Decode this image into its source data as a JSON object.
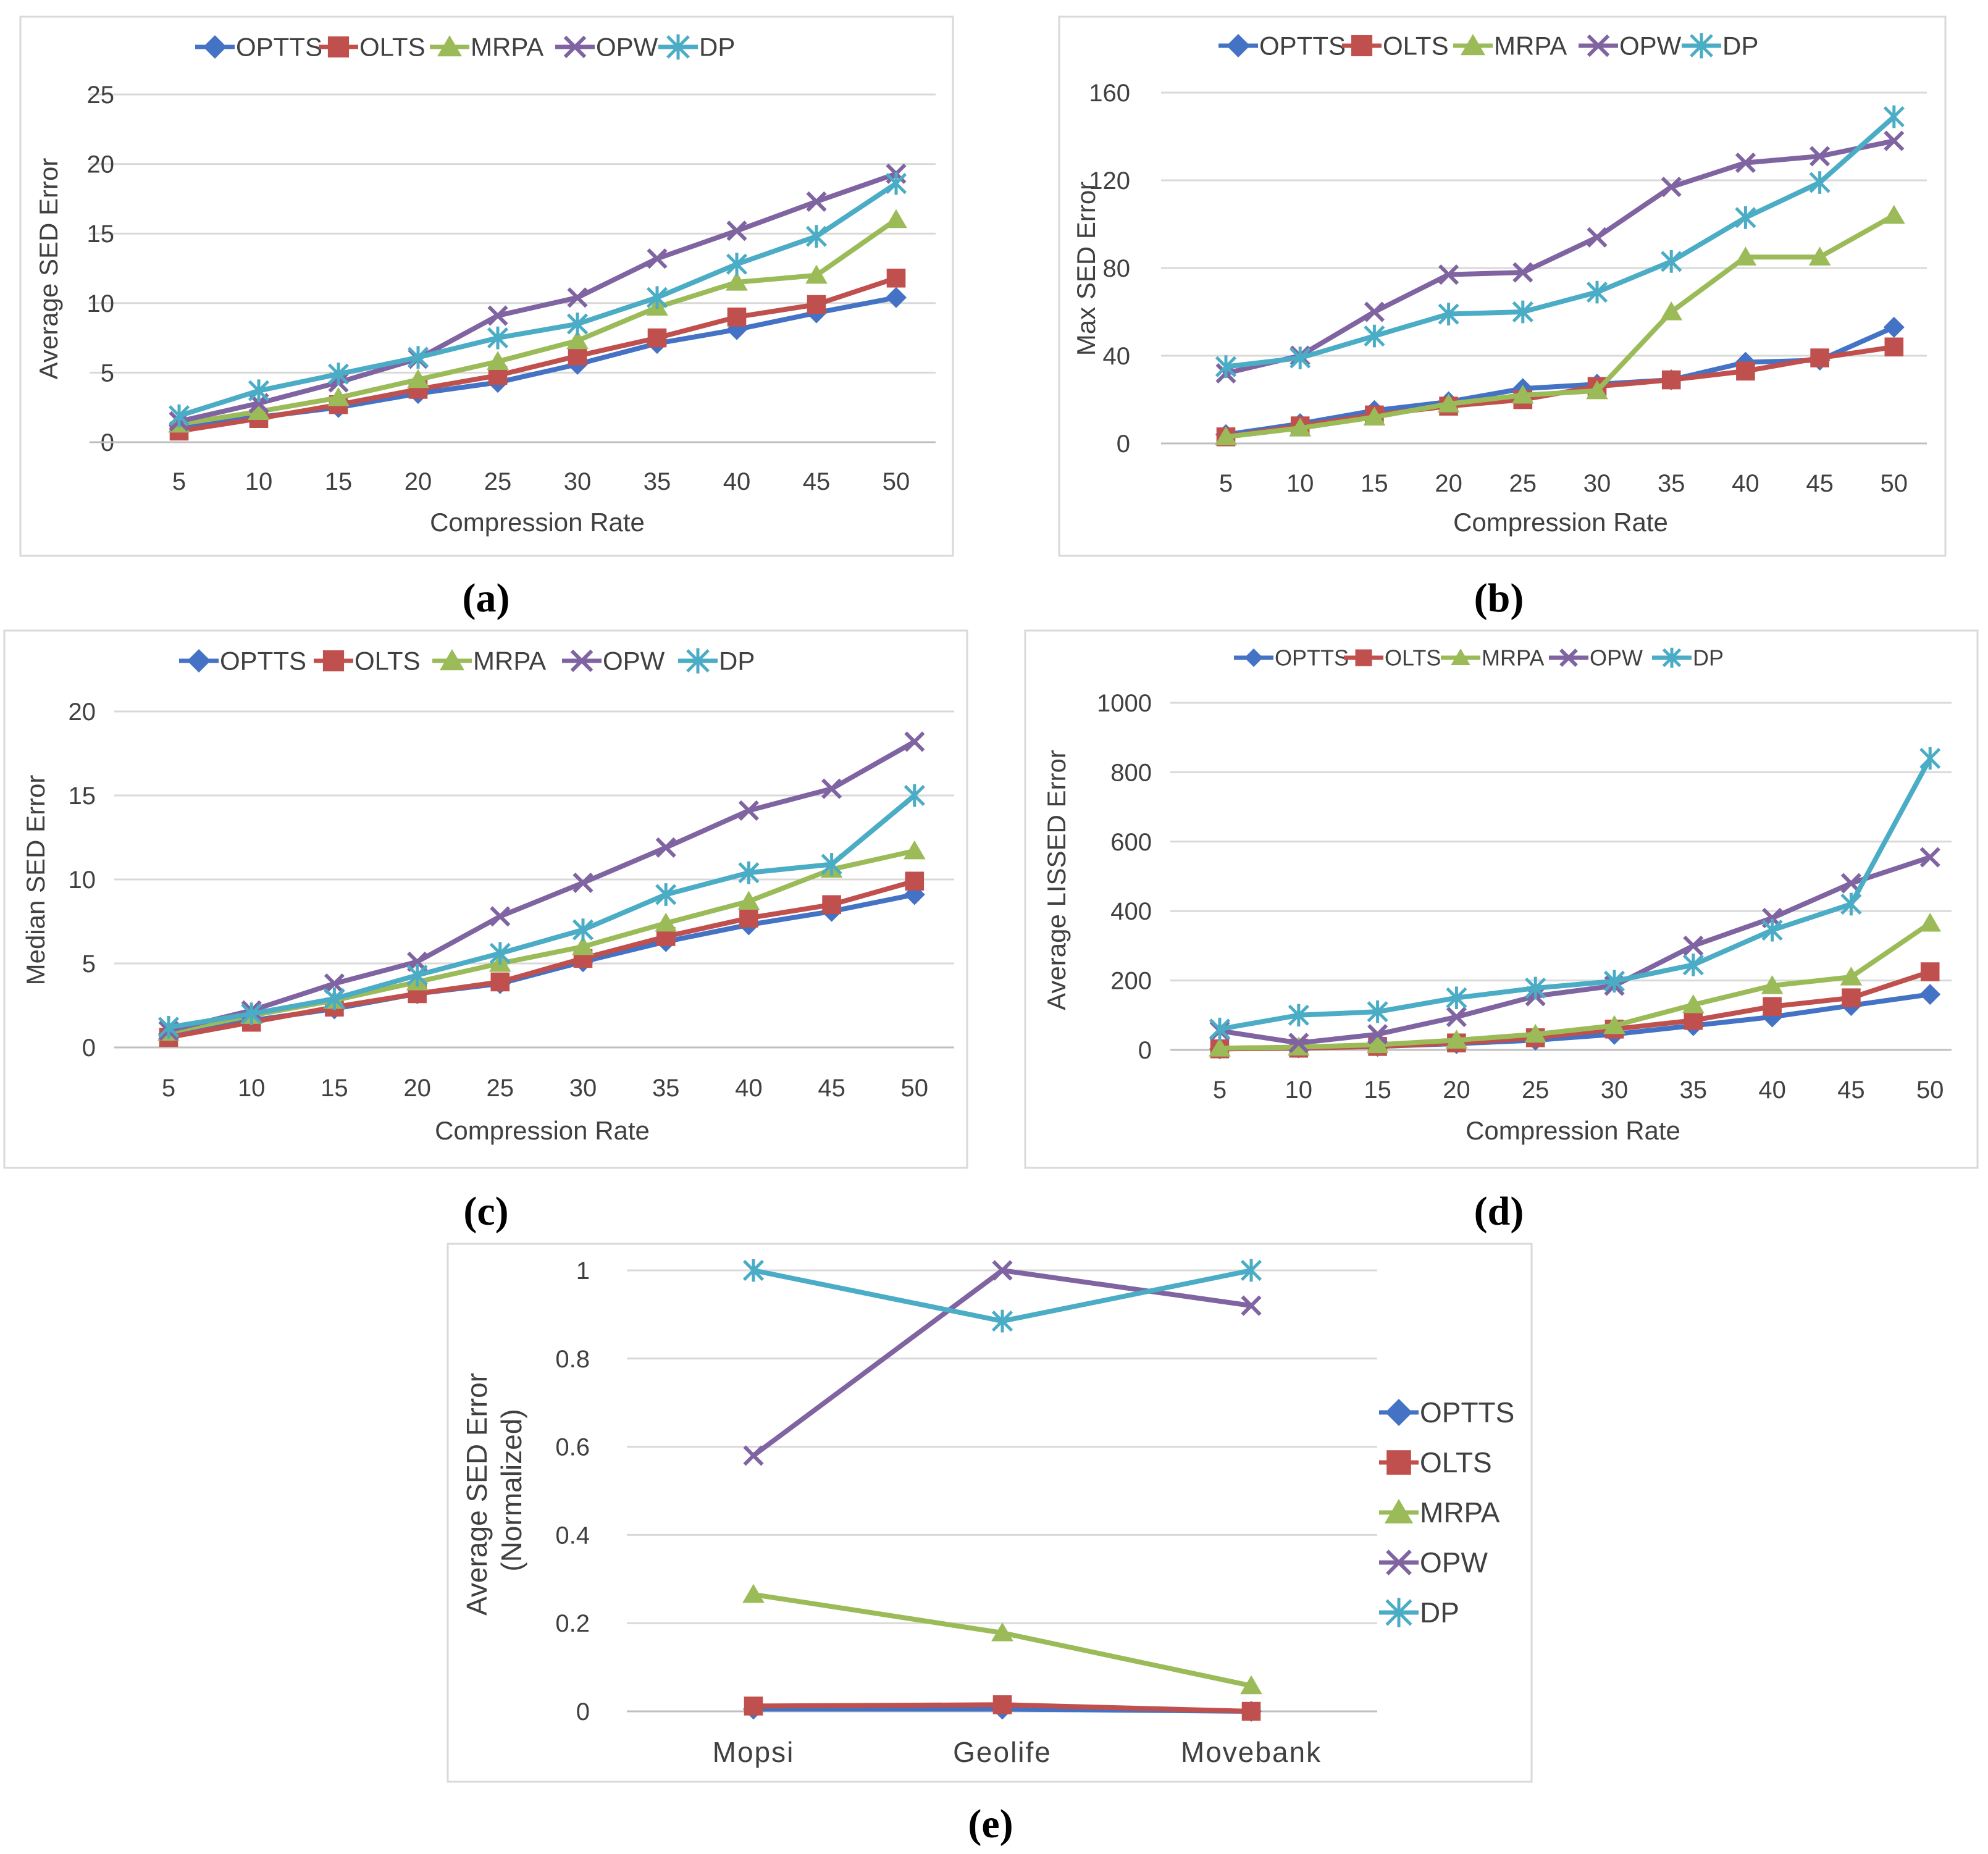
{
  "colors": {
    "OPTTS": "#4472c4",
    "OLTS": "#c0504d",
    "MRPA": "#9bbb59",
    "OPW": "#8064a2",
    "DP": "#4bacc6"
  },
  "markers": {
    "OPTTS": "diamond",
    "OLTS": "square",
    "MRPA": "triangle",
    "OPW": "x",
    "DP": "star"
  },
  "chart_data": [
    {
      "panel": "(a)",
      "type": "line",
      "xlabel": "Compression Rate",
      "ylabel": "Average SED Error",
      "categories": [
        "5",
        "10",
        "15",
        "20",
        "25",
        "30",
        "35",
        "40",
        "45",
        "50"
      ],
      "yticks": [
        "0",
        "5",
        "10",
        "15",
        "20",
        "25"
      ],
      "ylim": [
        0,
        25
      ],
      "legend": [
        "OPTTS",
        "OLTS",
        "MRPA",
        "OPW",
        "DP"
      ],
      "series": [
        {
          "name": "OPTTS",
          "values": [
            1.2,
            1.8,
            2.5,
            3.5,
            4.3,
            5.6,
            7.1,
            8.1,
            9.3,
            10.4
          ]
        },
        {
          "name": "OLTS",
          "values": [
            0.8,
            1.7,
            2.7,
            3.8,
            4.8,
            6.2,
            7.5,
            9.0,
            9.9,
            11.8
          ]
        },
        {
          "name": "MRPA",
          "values": [
            1.3,
            2.2,
            3.2,
            4.5,
            5.8,
            7.3,
            9.7,
            11.5,
            12.0,
            16.0
          ]
        },
        {
          "name": "OPW",
          "values": [
            1.5,
            2.8,
            4.3,
            6.0,
            9.1,
            10.4,
            13.2,
            15.2,
            17.3,
            19.3
          ]
        },
        {
          "name": "DP",
          "values": [
            1.9,
            3.7,
            4.9,
            6.1,
            7.5,
            8.5,
            10.4,
            12.8,
            14.8,
            18.6
          ]
        }
      ]
    },
    {
      "panel": "(b)",
      "type": "line",
      "xlabel": "Compression Rate",
      "ylabel": "Max SED Error",
      "categories": [
        "5",
        "10",
        "15",
        "20",
        "25",
        "30",
        "35",
        "40",
        "45",
        "50"
      ],
      "yticks": [
        "0",
        "40",
        "80",
        "120",
        "160"
      ],
      "ylim": [
        0,
        160
      ],
      "legend": [
        "OPTTS",
        "OLTS",
        "MRPA",
        "OPW",
        "DP"
      ],
      "series": [
        {
          "name": "OPTTS",
          "values": [
            4,
            9,
            15,
            19,
            25,
            27,
            29,
            37,
            38,
            53
          ]
        },
        {
          "name": "OLTS",
          "values": [
            3,
            8,
            13,
            17,
            20,
            26,
            29,
            33,
            39,
            44
          ]
        },
        {
          "name": "MRPA",
          "values": [
            3,
            7,
            12,
            18,
            22,
            24,
            60,
            85,
            85,
            104
          ]
        },
        {
          "name": "OPW",
          "values": [
            32,
            40,
            60,
            77,
            78,
            94,
            117,
            128,
            131,
            138
          ]
        },
        {
          "name": "DP",
          "values": [
            35,
            39,
            49,
            59,
            60,
            69,
            83,
            103,
            119,
            149
          ]
        }
      ]
    },
    {
      "panel": "(c)",
      "type": "line",
      "xlabel": "Compression Rate",
      "ylabel": "Median SED Error",
      "categories": [
        "5",
        "10",
        "15",
        "20",
        "25",
        "30",
        "35",
        "40",
        "45",
        "50"
      ],
      "yticks": [
        "0",
        "5",
        "10",
        "15",
        "20"
      ],
      "ylim": [
        0,
        20
      ],
      "legend": [
        "OPTTS",
        "OLTS",
        "MRPA",
        "OPW",
        "DP"
      ],
      "series": [
        {
          "name": "OPTTS",
          "values": [
            0.8,
            1.6,
            2.3,
            3.2,
            3.8,
            5.1,
            6.3,
            7.3,
            8.1,
            9.1
          ]
        },
        {
          "name": "OLTS",
          "values": [
            0.6,
            1.5,
            2.4,
            3.2,
            3.9,
            5.3,
            6.6,
            7.7,
            8.5,
            9.9
          ]
        },
        {
          "name": "MRPA",
          "values": [
            0.9,
            1.9,
            2.8,
            3.9,
            5.0,
            6.0,
            7.4,
            8.7,
            10.6,
            11.7
          ]
        },
        {
          "name": "OPW",
          "values": [
            1.0,
            2.2,
            3.8,
            5.1,
            7.8,
            9.8,
            11.9,
            14.1,
            15.4,
            18.2
          ]
        },
        {
          "name": "DP",
          "values": [
            1.2,
            2.0,
            2.9,
            4.3,
            5.6,
            7.0,
            9.1,
            10.4,
            10.9,
            15.0
          ]
        }
      ]
    },
    {
      "panel": "(d)",
      "type": "line",
      "xlabel": "Compression Rate",
      "ylabel": "Average LISSED Error",
      "categories": [
        "5",
        "10",
        "15",
        "20",
        "25",
        "30",
        "35",
        "40",
        "45",
        "50"
      ],
      "yticks": [
        "0",
        "200",
        "400",
        "600",
        "800",
        "1000"
      ],
      "ylim": [
        0,
        1000
      ],
      "legend": [
        "OPTTS",
        "OLTS",
        "MRPA",
        "OPW",
        "DP"
      ],
      "series": [
        {
          "name": "OPTTS",
          "values": [
            3,
            6,
            10,
            18,
            28,
            45,
            70,
            95,
            128,
            160
          ]
        },
        {
          "name": "OLTS",
          "values": [
            3,
            5,
            10,
            20,
            35,
            60,
            85,
            125,
            150,
            225
          ]
        },
        {
          "name": "MRPA",
          "values": [
            5,
            8,
            15,
            28,
            45,
            70,
            130,
            185,
            210,
            365
          ]
        },
        {
          "name": "OPW",
          "values": [
            55,
            20,
            45,
            95,
            155,
            185,
            300,
            380,
            480,
            555
          ]
        },
        {
          "name": "DP",
          "values": [
            60,
            100,
            110,
            150,
            178,
            198,
            245,
            345,
            420,
            840
          ]
        }
      ]
    },
    {
      "panel": "(e)",
      "type": "line",
      "xlabel": "",
      "ylabel": "Average SED Error (Normalized)",
      "ylabel_lines": [
        "Average SED Error",
        "(Normalized)"
      ],
      "categories": [
        "Mopsi",
        "Geolife",
        "Movebank"
      ],
      "yticks": [
        "0",
        "0.2",
        "0.4",
        "0.6",
        "0.8",
        "1"
      ],
      "ylim": [
        0,
        1
      ],
      "legend": [
        "OPTTS",
        "OLTS",
        "MRPA",
        "OPW",
        "DP"
      ],
      "legend_position": "right",
      "series": [
        {
          "name": "OPTTS",
          "values": [
            0.005,
            0.005,
            0.0
          ]
        },
        {
          "name": "OLTS",
          "values": [
            0.012,
            0.015,
            0.0
          ]
        },
        {
          "name": "MRPA",
          "values": [
            0.265,
            0.178,
            0.058
          ]
        },
        {
          "name": "OPW",
          "values": [
            0.58,
            1.0,
            0.92
          ]
        },
        {
          "name": "DP",
          "values": [
            1.0,
            0.885,
            1.0
          ]
        }
      ]
    }
  ]
}
